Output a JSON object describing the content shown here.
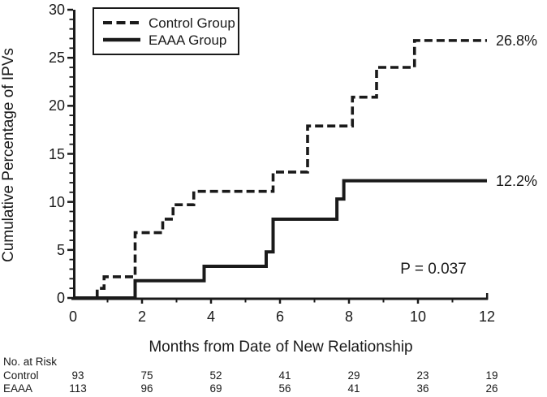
{
  "chart_data": {
    "type": "line",
    "subtype": "step",
    "title": "",
    "xlabel": "Months from Date of New Relationship",
    "ylabel": "Cumulative Percentage of IPVs",
    "xlim": [
      0,
      12
    ],
    "ylim": [
      0,
      30
    ],
    "x_ticks": [
      0,
      2,
      4,
      6,
      8,
      10,
      12
    ],
    "x_minor_ticks": [
      1,
      3,
      5,
      7,
      9,
      11
    ],
    "y_ticks": [
      0,
      5,
      10,
      15,
      20,
      25,
      30
    ],
    "y_minor_tick_step": 1,
    "grid": false,
    "legend_position": "top-left",
    "line_color": "#1a1a1a",
    "background_color": "#ffffff",
    "annotation": "P = 0.037",
    "series": [
      {
        "name": "Control Group",
        "style": "dashed",
        "end_label": "26.8%",
        "steps": [
          [
            0,
            0
          ],
          [
            0.7,
            1.0
          ],
          [
            0.9,
            2.2
          ],
          [
            1.8,
            6.8
          ],
          [
            2.6,
            8.2
          ],
          [
            2.9,
            9.7
          ],
          [
            3.5,
            11.1
          ],
          [
            5.8,
            13.1
          ],
          [
            6.8,
            17.9
          ],
          [
            8.1,
            20.9
          ],
          [
            8.8,
            24.0
          ],
          [
            9.9,
            26.8
          ],
          [
            12,
            26.8
          ]
        ]
      },
      {
        "name": "EAAA Group",
        "style": "solid",
        "end_label": "12.2%",
        "steps": [
          [
            0,
            0
          ],
          [
            1.8,
            1.8
          ],
          [
            3.8,
            3.3
          ],
          [
            5.6,
            4.8
          ],
          [
            5.8,
            8.2
          ],
          [
            7.65,
            10.3
          ],
          [
            7.85,
            12.2
          ],
          [
            12,
            12.2
          ]
        ]
      }
    ],
    "risk_table": {
      "title": "No. at Risk",
      "time_points": [
        0,
        2,
        4,
        6,
        8,
        10,
        12
      ],
      "rows": [
        {
          "label": "Control",
          "values": [
            93,
            75,
            52,
            41,
            29,
            23,
            19
          ]
        },
        {
          "label": "EAAA",
          "values": [
            113,
            96,
            69,
            56,
            41,
            36,
            26
          ]
        }
      ]
    }
  }
}
